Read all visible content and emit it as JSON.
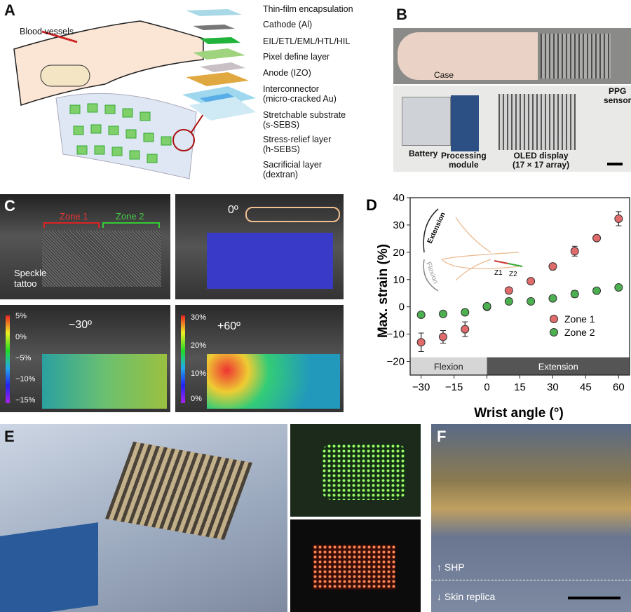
{
  "panels": {
    "A": {
      "label": "A",
      "blood_vessels": "Blood vessels",
      "layers": [
        "Thin-film encapsulation",
        "Cathode (Al)",
        "EIL/ETL/EML/HTL/HIL",
        "Pixel define layer",
        "Anode (IZO)",
        "Interconnector\n(micro-cracked Au)",
        "Stretchable substrate\n(s-SEBS)",
        "Stress-relief layer\n(h-SEBS)",
        "Sacrificial layer\n(dextran)"
      ],
      "layer_colors": [
        "#a9d8e6",
        "#777777",
        "#22b33a",
        "#9fd37e",
        "#c8c0c4",
        "#e0a840",
        "#9fd8ee",
        "#5aaee8",
        "#cfeaf5"
      ]
    },
    "B": {
      "label": "B",
      "case": "Case",
      "battery": "Battery",
      "processing_module": "Processing\nmodule",
      "oled_display": "OLED display\n(17 × 17 array)",
      "ppg_sensor": "PPG\nsensor"
    },
    "C": {
      "label": "C",
      "zone1": "Zone 1",
      "zone2": "Zone 2",
      "speckle": "Speckle\ntattoo",
      "angle0": "0º",
      "angle_m30": "−30º",
      "angle_p60": "+60º",
      "cbar_left": [
        "5%",
        "0%",
        "−5%",
        "−10%",
        "−15%"
      ],
      "cbar_right": [
        "30%",
        "20%",
        "10%",
        "0%"
      ]
    },
    "E": {
      "label": "E"
    },
    "F": {
      "label": "F",
      "shp": "SHP",
      "skin": "Skin replica"
    }
  },
  "chart_data": {
    "label": "D",
    "type": "scatter",
    "xlabel": "Wrist angle (°)",
    "ylabel": "Max. strain (%)",
    "xlim": [
      -35,
      65
    ],
    "ylim": [
      -25,
      40
    ],
    "xticks": [
      -30,
      -15,
      0,
      15,
      30,
      45,
      60
    ],
    "yticks": [
      -20,
      -10,
      0,
      10,
      20,
      30,
      40
    ],
    "x": [
      -30,
      -20,
      -10,
      0,
      10,
      20,
      30,
      40,
      50,
      60
    ],
    "series": [
      {
        "name": "Zone 1",
        "color": "#e06b6b",
        "values": [
          -13,
          -11,
          -8.2,
          0,
          6,
          9.4,
          14.8,
          20.4,
          25.2,
          32.3
        ],
        "errors": [
          3.4,
          2.3,
          2.7,
          0.3,
          0.5,
          0.5,
          1.2,
          1.8,
          0.6,
          2.6
        ]
      },
      {
        "name": "Zone 2",
        "color": "#4caf50",
        "values": [
          -2.9,
          -2.6,
          -2,
          0.2,
          2,
          2,
          3.1,
          4.7,
          5.9,
          7.1
        ],
        "errors": [
          0.4,
          0.4,
          0.8,
          0.3,
          0.4,
          0.4,
          0.6,
          1.2,
          0.5,
          0.4
        ]
      }
    ],
    "legend": "bottom-right",
    "regions": [
      {
        "label": "Flexion",
        "range": [
          -35,
          0
        ],
        "color": "#d6d6d6"
      },
      {
        "label": "Extension",
        "range": [
          0,
          65
        ],
        "color": "#555555"
      }
    ],
    "inset": {
      "extension": "Extension",
      "flexion": "Flexion",
      "z1": "Z1",
      "z2": "Z2"
    }
  }
}
